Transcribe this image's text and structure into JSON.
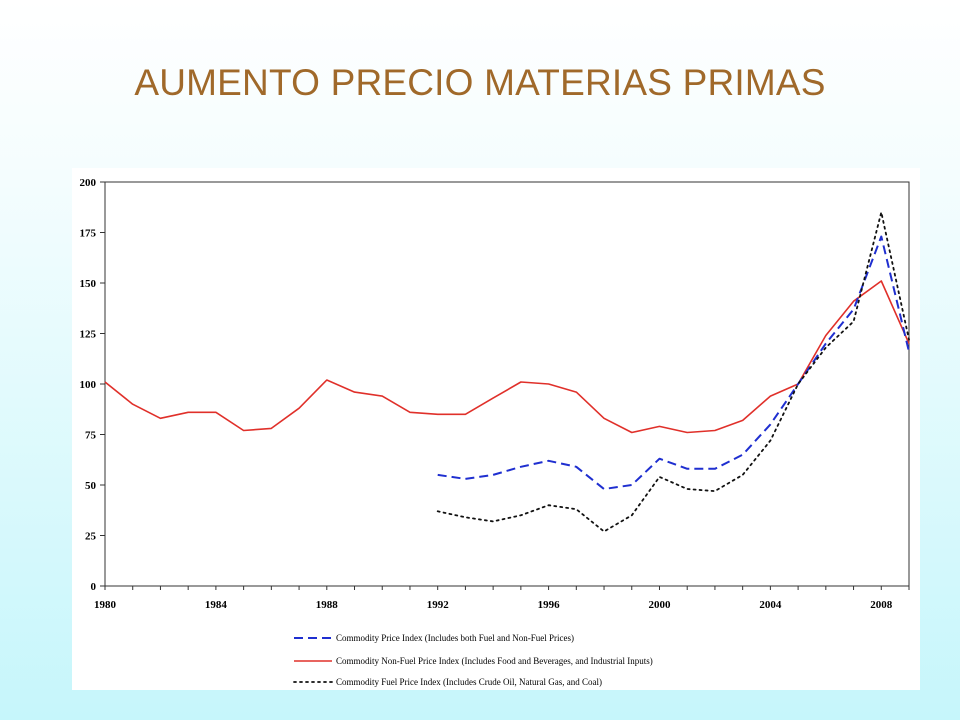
{
  "slide": {
    "title": "AUMENTO PRECIO MATERIAS PRIMAS",
    "title_color": "#a0692a"
  },
  "chart_data": {
    "type": "line",
    "title": "",
    "xlabel": "",
    "ylabel": "",
    "xlim": [
      1980,
      2009
    ],
    "ylim": [
      0,
      200
    ],
    "grid": false,
    "legend_position": "bottom",
    "x_ticks": [
      "1980",
      "1984",
      "1988",
      "1992",
      "1996",
      "2000",
      "2004",
      "2008"
    ],
    "y_ticks": [
      "0",
      "25",
      "50",
      "75",
      "100",
      "125",
      "150",
      "175",
      "200"
    ],
    "series": [
      {
        "name": "Commodity Price Index (Includes both Fuel and Non-Fuel Prices)",
        "style": "dashed",
        "color": "#1f2fd0",
        "x": [
          1992,
          1993,
          1994,
          1995,
          1996,
          1997,
          1998,
          1999,
          2000,
          2001,
          2002,
          2003,
          2004,
          2005,
          2006,
          2007,
          2008,
          2009
        ],
        "values": [
          55,
          53,
          55,
          59,
          62,
          59,
          48,
          50,
          63,
          58,
          58,
          65,
          80,
          100,
          120,
          137,
          173,
          116
        ]
      },
      {
        "name": "Commodity Non-Fuel Price Index (Includes Food and Beverages, and Industrial Inputs)",
        "style": "solid",
        "color": "#e0302a",
        "x": [
          1980,
          1981,
          1982,
          1983,
          1984,
          1985,
          1986,
          1987,
          1988,
          1989,
          1990,
          1991,
          1992,
          1993,
          1994,
          1995,
          1996,
          1997,
          1998,
          1999,
          2000,
          2001,
          2002,
          2003,
          2004,
          2005,
          2006,
          2007,
          2008,
          2009
        ],
        "values": [
          101,
          90,
          83,
          86,
          86,
          77,
          78,
          88,
          102,
          96,
          94,
          86,
          85,
          85,
          93,
          101,
          100,
          96,
          83,
          76,
          79,
          76,
          77,
          82,
          94,
          100,
          124,
          141,
          151,
          120
        ]
      },
      {
        "name": "Commodity Fuel Price Index (Includes Crude Oil, Natural Gas, and Coal)",
        "style": "dotted",
        "color": "#111111",
        "x": [
          1992,
          1993,
          1994,
          1995,
          1996,
          1997,
          1998,
          1999,
          2000,
          2001,
          2002,
          2003,
          2004,
          2005,
          2006,
          2007,
          2008,
          2009
        ],
        "values": [
          37,
          34,
          32,
          35,
          40,
          38,
          27,
          35,
          54,
          48,
          47,
          55,
          72,
          100,
          118,
          131,
          185,
          122
        ]
      }
    ]
  }
}
